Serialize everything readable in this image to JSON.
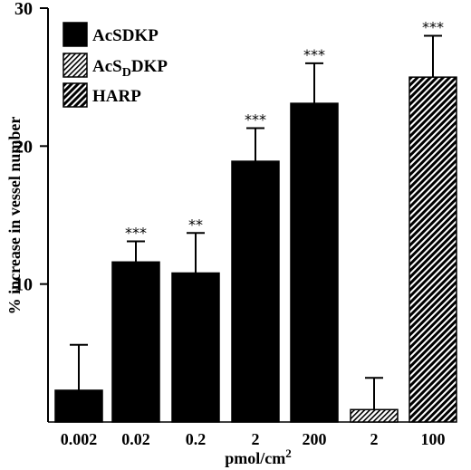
{
  "chart_data": {
    "type": "bar",
    "xlabel_main": "pmol/cm",
    "xlabel_sup": "2",
    "ylabel": "% increase in vessel number",
    "ylim": [
      0,
      30
    ],
    "yticks": [
      10,
      20,
      30
    ],
    "grid": false,
    "legend_position": "top-left",
    "legend": [
      {
        "series": "AcSDKP",
        "label_main": "AcSDKP",
        "label_sub": "",
        "label_tail": ""
      },
      {
        "series": "AcSDDKP",
        "label_main": "AcS",
        "label_sub": "D",
        "label_tail": "DKP"
      },
      {
        "series": "HARP",
        "label_main": "HARP",
        "label_sub": "",
        "label_tail": ""
      }
    ],
    "bars": [
      {
        "category": "0.002",
        "series": "AcSDKP",
        "value": 2.3,
        "error": 3.3,
        "significance": ""
      },
      {
        "category": "0.02",
        "series": "AcSDKP",
        "value": 11.6,
        "error": 1.5,
        "significance": "***"
      },
      {
        "category": "0.2",
        "series": "AcSDKP",
        "value": 10.8,
        "error": 2.9,
        "significance": "**"
      },
      {
        "category": "2",
        "series": "AcSDKP",
        "value": 18.9,
        "error": 2.4,
        "significance": "***"
      },
      {
        "category": "200",
        "series": "AcSDKP",
        "value": 23.1,
        "error": 2.9,
        "significance": "***"
      },
      {
        "category": "2",
        "series": "AcSDDKP",
        "value": 0.9,
        "error": 2.3,
        "significance": ""
      },
      {
        "category": "100",
        "series": "HARP",
        "value": 25.0,
        "error": 3.0,
        "significance": "***"
      }
    ]
  }
}
